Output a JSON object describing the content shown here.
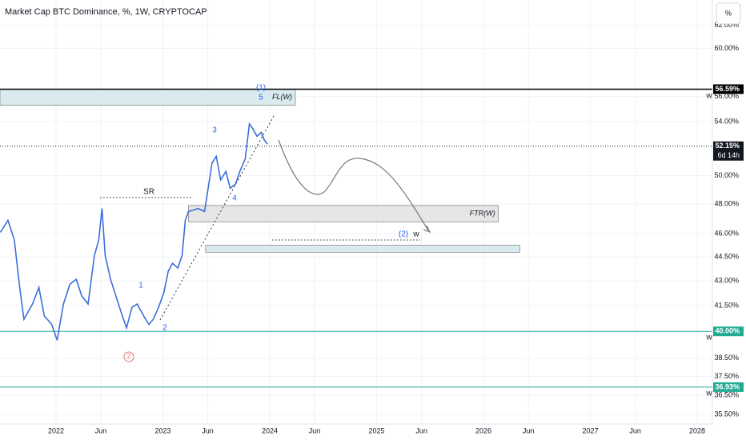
{
  "chart_data": {
    "type": "line",
    "title": "Market Cap BTC Dominance, %, 1W, CRYPTOCAP",
    "log_scale": true,
    "grid": true,
    "xlim": [
      2021.476,
      2028.142
    ],
    "ylim": [
      35.03,
      64.3
    ],
    "xticks": [
      2022,
      {
        "value": 2022.42,
        "label": "Jun"
      },
      2023,
      {
        "value": 2023.42,
        "label": "Jun"
      },
      2024,
      {
        "value": 2024.42,
        "label": "Jun"
      },
      2025,
      {
        "value": 2025.42,
        "label": "Jun"
      },
      2026,
      {
        "value": 2026.42,
        "label": "Jun"
      },
      2027,
      {
        "value": 2027.42,
        "label": "Jun"
      },
      2028
    ],
    "yticks": [
      {
        "value": 62,
        "label": "62.00%"
      },
      {
        "value": 60,
        "label": "60.00%"
      },
      {
        "value": 56,
        "label": "56.00%"
      },
      {
        "value": 54,
        "label": "54.00%"
      },
      {
        "value": 50,
        "label": "50.00%"
      },
      {
        "value": 48,
        "label": "48.00%"
      },
      {
        "value": 46,
        "label": "46.00%"
      },
      {
        "value": 44.5,
        "label": "44.50%"
      },
      {
        "value": 43,
        "label": "43.00%"
      },
      {
        "value": 41.5,
        "label": "41.50%"
      },
      {
        "value": 40,
        "label": "40.00%"
      },
      {
        "value": 38.5,
        "label": "38.50%"
      },
      {
        "value": 37.5,
        "label": "37.50%"
      },
      {
        "value": 36.5,
        "label": "36.50%"
      },
      {
        "value": 35.5,
        "label": "35.50%"
      }
    ],
    "series": [
      {
        "name": "BTC Dominance",
        "color": "#3b6fd8",
        "x": [
          2021.48,
          2021.55,
          2021.61,
          2021.66,
          2021.7,
          2021.78,
          2021.84,
          2021.89,
          2021.96,
          2022.01,
          2022.07,
          2022.13,
          2022.19,
          2022.24,
          2022.3,
          2022.36,
          2022.4,
          2022.43,
          2022.46,
          2022.51,
          2022.56,
          2022.61,
          2022.66,
          2022.71,
          2022.76,
          2022.82,
          2022.87,
          2022.91,
          2022.96,
          2023.01,
          2023.05,
          2023.09,
          2023.14,
          2023.18,
          2023.21,
          2023.24,
          2023.29,
          2023.33,
          2023.39,
          2023.42,
          2023.46,
          2023.5,
          2023.54,
          2023.59,
          2023.63,
          2023.68,
          2023.72,
          2023.77,
          2023.81,
          2023.84,
          2023.88,
          2023.92,
          2023.95,
          2023.98
        ],
        "values": [
          46.1,
          46.9,
          45.6,
          42.6,
          40.7,
          41.6,
          42.6,
          40.9,
          40.4,
          39.5,
          41.6,
          42.8,
          43.1,
          42.1,
          41.6,
          44.6,
          45.6,
          47.7,
          44.6,
          43.1,
          42.1,
          41.1,
          40.2,
          41.4,
          41.6,
          40.9,
          40.4,
          40.7,
          41.4,
          42.3,
          43.6,
          44.1,
          43.8,
          44.6,
          46.9,
          47.5,
          47.6,
          47.7,
          47.5,
          48.9,
          50.9,
          51.4,
          49.7,
          50.3,
          49.1,
          49.4,
          50.3,
          51.2,
          53.85,
          53.5,
          52.9,
          53.2,
          52.6,
          52.3
        ]
      }
    ],
    "levels": [
      {
        "value": 56.59,
        "label": "56.59%",
        "color": "#000000"
      },
      {
        "value": 52.15,
        "label": "52.15%",
        "sublabel": "6d 14h",
        "color": "#131722"
      },
      {
        "value": 40,
        "label": "40.00%",
        "color": "#22ab94"
      },
      {
        "value": 36.93,
        "label": "36.93%",
        "color": "#22ab94"
      }
    ],
    "zones": [
      {
        "label": "FL(W)",
        "x0": 2021.476,
        "x1": 2024.24,
        "top": 56.57,
        "bottom": 55.3,
        "color": "#cfe6ea"
      },
      {
        "label": "FTR(W)",
        "x0": 2023.24,
        "x1": 2026.14,
        "top": 47.9,
        "bottom": 46.8,
        "color": "#e0e0e0"
      },
      {
        "x0": 2023.4,
        "x1": 2026.34,
        "top": 45.25,
        "bottom": 44.8,
        "color": "#cfe6ea"
      }
    ],
    "annotations": [
      "SR",
      "(2)",
      "w",
      "1",
      "2",
      "3",
      "4",
      "5",
      "(1)",
      "2",
      "w",
      "w",
      "w"
    ],
    "button": "%"
  }
}
